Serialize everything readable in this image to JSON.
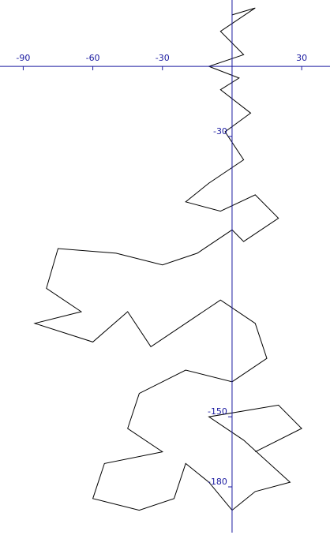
{
  "chart_data": {
    "type": "line",
    "xlim": [
      -100,
      42.2
    ],
    "ylim": [
      -200.6,
      28.4
    ],
    "xticks": [
      -90,
      -60,
      -30,
      30
    ],
    "yticks": [
      -30,
      -150,
      -180
    ],
    "axis_color": "#1a1aa0",
    "series": [
      {
        "color": "#000000",
        "x": [
          0,
          10,
          -5,
          5,
          -10,
          3,
          -5,
          8,
          -3,
          5,
          -10,
          -20,
          -5,
          10,
          20,
          5,
          0,
          -15,
          -30,
          -50,
          -75,
          -80,
          -65,
          -85,
          -60,
          -45,
          -35,
          -20,
          -5,
          10,
          15,
          0,
          -20,
          -40,
          -45,
          -30,
          -55,
          -60,
          -40,
          -25,
          -20,
          -10,
          0,
          10,
          25,
          5,
          -10,
          20,
          30,
          10
        ],
        "values": [
          22,
          25,
          15,
          5,
          0,
          -5,
          -10,
          -20,
          -28,
          -40,
          -50,
          -58,
          -62,
          -55,
          -65,
          -75,
          -70,
          -80,
          -85,
          -80,
          -78,
          -95,
          -105,
          -110,
          -118,
          -105,
          -120,
          -110,
          -100,
          -110,
          -125,
          -135,
          -130,
          -140,
          -155,
          -165,
          -170,
          -185,
          -190,
          -185,
          -170,
          -178,
          -190,
          -182,
          -178,
          -160,
          -150,
          -145,
          -155,
          -165
        ]
      }
    ]
  }
}
